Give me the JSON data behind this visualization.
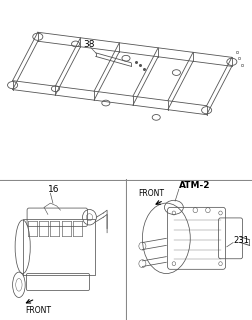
{
  "background_color": "#ffffff",
  "border_color": "#888888",
  "line_color": "#555555",
  "text_color": "#000000",
  "title": "",
  "top_label": "38",
  "bottom_left_label": "16",
  "bottom_right_label": "231",
  "bottom_right_tag": "ATM-2",
  "front_label": "FRONT",
  "fig_width": 2.52,
  "fig_height": 3.2,
  "dpi": 100
}
